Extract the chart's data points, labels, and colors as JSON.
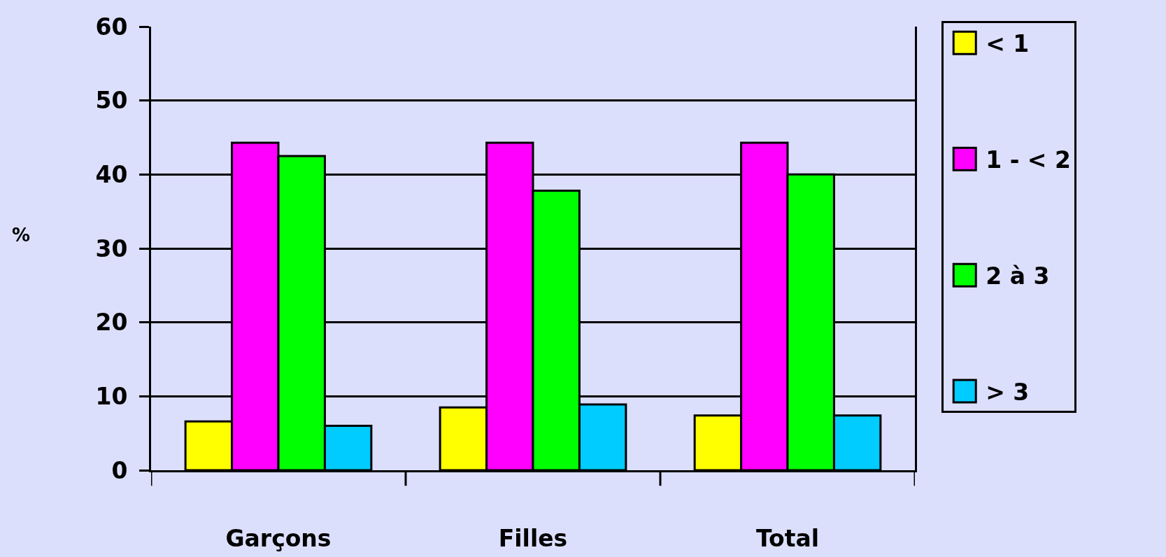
{
  "chart_data": {
    "type": "bar",
    "categories": [
      "Garçons",
      "Filles",
      "Total"
    ],
    "ylabel": "%",
    "series": [
      {
        "name": "< 1",
        "color": "#ffff00",
        "values": [
          6.6,
          8.5,
          7.4
        ]
      },
      {
        "name": "1 - < 2",
        "color": "#ff00ff",
        "values": [
          44.3,
          44.3,
          44.3
        ]
      },
      {
        "name": "2 à 3",
        "color": "#00ff00",
        "values": [
          42.5,
          37.8,
          40
        ]
      },
      {
        "name": "> 3",
        "color": "#00ccff",
        "values": [
          6,
          8.9,
          7.4
        ]
      }
    ],
    "ylim": [
      0,
      60
    ],
    "yticks": [
      0,
      10,
      20,
      30,
      40,
      50,
      60
    ],
    "grid": "y",
    "legend": "right"
  }
}
